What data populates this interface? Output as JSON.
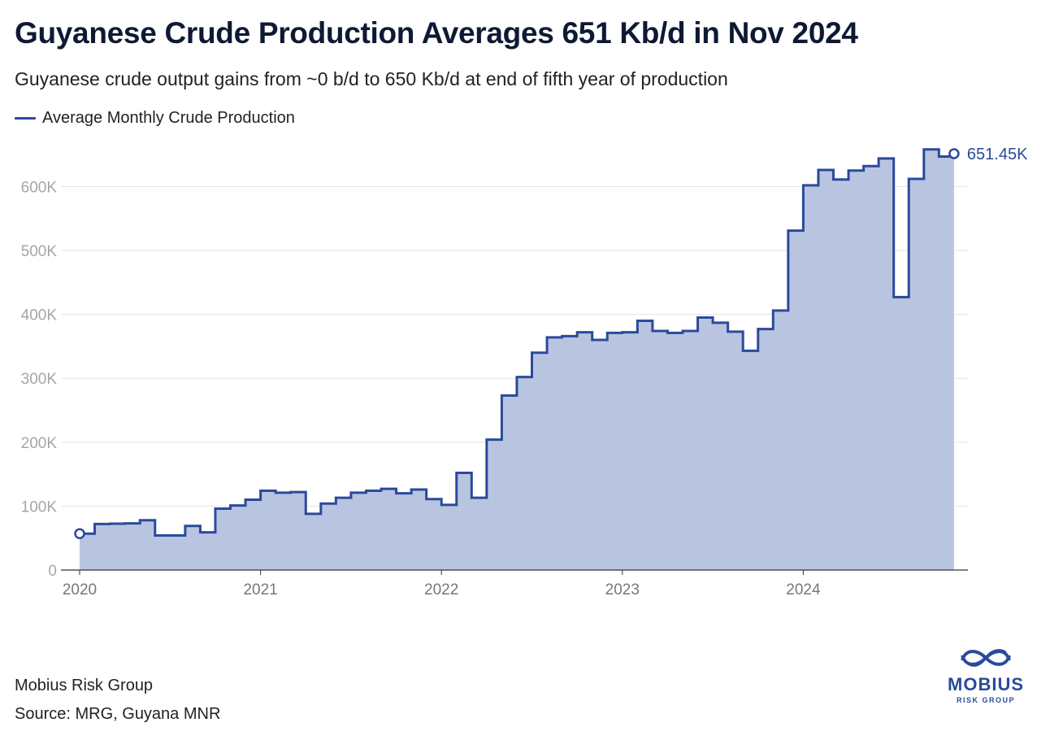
{
  "title": "Guyanese Crude Production Averages 651 Kb/d in Nov 2024",
  "subtitle": "Guyanese crude output gains from ~0 b/d to 650 Kb/d at end of fifth year of production",
  "footer": {
    "organization": "Mobius Risk Group",
    "source": "Source: MRG, Guyana MNR"
  },
  "logo": {
    "word": "MOBIUS",
    "sub": "RISK GROUP",
    "icon": "mobius-infinity-icon"
  },
  "colors": {
    "line": "#2a4a9b",
    "area": "#b9c5e0",
    "grid": "#e3e3e3",
    "tick": "#a6a6a6"
  },
  "chart_data": {
    "type": "area",
    "step": true,
    "series": [
      {
        "name": "Average Monthly Crude Production",
        "x_start": "2020-01",
        "x_end": "2024-11",
        "values": [
          57000,
          72000,
          72500,
          73000,
          78000,
          54000,
          54000,
          69000,
          59000,
          96000,
          101000,
          110000,
          124000,
          121000,
          122000,
          88000,
          104000,
          113000,
          121000,
          124000,
          127000,
          120000,
          126000,
          111000,
          102000,
          152000,
          113000,
          204000,
          273000,
          302000,
          340000,
          364000,
          366000,
          372000,
          360000,
          371000,
          372000,
          390000,
          374000,
          371000,
          374000,
          395000,
          387000,
          373000,
          343000,
          377000,
          406000,
          531000,
          602000,
          626000,
          611000,
          625000,
          632000,
          644000,
          427000,
          612000,
          658000,
          647000,
          651450
        ]
      }
    ],
    "xticks": [
      "2020",
      "2021",
      "2022",
      "2023",
      "2024"
    ],
    "yticks": [
      "0",
      "100K",
      "200K",
      "300K",
      "400K",
      "500K",
      "600K"
    ],
    "ytick_values": [
      0,
      100000,
      200000,
      300000,
      400000,
      500000,
      600000
    ],
    "ylim": [
      0,
      650000
    ],
    "end_label": "651.45K",
    "grid": true,
    "legend_position": "top-left"
  }
}
